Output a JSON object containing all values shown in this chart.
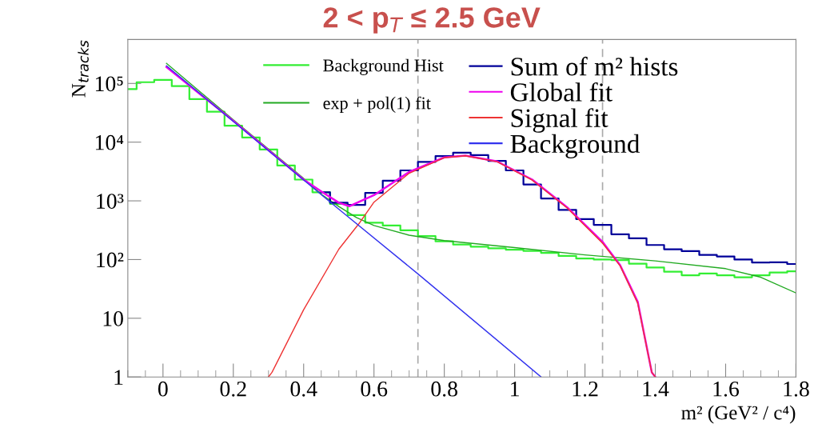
{
  "chart_data": {
    "type": "line",
    "title": "2 < p$_{T}$ ≤ 2.5 GeV",
    "xlabel": "m² (GeV² / c⁴)",
    "ylabel": "N$_{tracks}$",
    "log": "y",
    "xlim": [
      -0.1,
      1.8
    ],
    "xticks": [
      0,
      0.2,
      0.4,
      0.6,
      0.8,
      1,
      1.2,
      1.4,
      1.6,
      1.8
    ],
    "ylim": [
      1,
      560000
    ],
    "yticks": [
      1,
      10,
      {
        "value": 100,
        "label": "10²"
      },
      {
        "value": 1000,
        "label": "10³"
      },
      {
        "value": 10000,
        "label": "10⁴"
      },
      {
        "value": 100000,
        "label": "10⁵"
      }
    ],
    "grid": false,
    "legend": "top right",
    "ref_lines": [
      {
        "axis": "x",
        "value": 0.725,
        "color": "#aaaaaa",
        "line_style": "dashed"
      },
      {
        "axis": "x",
        "value": 1.25,
        "color": "#aaaaaa",
        "line_style": "dashed"
      }
    ],
    "series": [
      {
        "name": "Background Hist",
        "type": "step",
        "color": "#33ee33",
        "x": [
          -0.1,
          -0.05,
          0,
          0.05,
          0.1,
          0.15,
          0.2,
          0.25,
          0.3,
          0.35,
          0.4,
          0.45,
          0.5,
          0.55,
          0.6,
          0.65,
          0.7,
          0.75,
          0.8,
          0.85,
          0.9,
          0.95,
          1,
          1.05,
          1.1,
          1.15,
          1.2,
          1.25,
          1.3,
          1.35,
          1.4,
          1.45,
          1.5,
          1.55,
          1.6,
          1.65,
          1.7,
          1.75,
          1.8
        ],
        "values": [
          80000,
          105000,
          115000,
          90000,
          54000,
          33000,
          19000,
          12000,
          7500,
          4000,
          2300,
          1400,
          890,
          570,
          425,
          380,
          316,
          250,
          204,
          180,
          166,
          155,
          147,
          140,
          130,
          115,
          104,
          100,
          98,
          85,
          73,
          62,
          54,
          58,
          54,
          50,
          54,
          60,
          63
        ]
      },
      {
        "name": "exp + pol(1) fit",
        "color": "#22aa22",
        "x": [
          0.01,
          0.2,
          0.4,
          0.45,
          0.5,
          0.55,
          0.6,
          0.7,
          0.8,
          1,
          1.2,
          1.4,
          1.6,
          1.7,
          1.8
        ],
        "values": [
          220000,
          24000,
          2400,
          1300,
          800,
          520,
          380,
          260,
          210,
          160,
          120,
          95,
          70,
          50,
          27
        ]
      },
      {
        "name": "Sum of m² hists",
        "type": "step",
        "color": "#000099",
        "x": [
          0.45,
          0.5,
          0.55,
          0.6,
          0.65,
          0.7,
          0.75,
          0.8,
          0.85,
          0.9,
          0.95,
          1,
          1.05,
          1.1,
          1.15,
          1.2,
          1.25,
          1.3,
          1.35,
          1.4,
          1.45,
          1.5,
          1.55,
          1.6,
          1.65,
          1.7,
          1.75,
          1.8
        ],
        "values": [
          1400,
          930,
          850,
          1370,
          2200,
          3300,
          4600,
          5800,
          6600,
          6000,
          4800,
          3300,
          1900,
          1100,
          700,
          490,
          390,
          270,
          230,
          177,
          150,
          139,
          120,
          113,
          100,
          89,
          90,
          84
        ]
      },
      {
        "name": "Global fit",
        "color": "#ee00ee",
        "x": [
          0.01,
          0.2,
          0.4,
          0.45,
          0.5,
          0.53,
          0.6,
          0.7,
          0.8,
          0.86,
          0.95,
          1.05,
          1.15,
          1.25,
          1.3,
          1.35,
          1.39,
          1.4
        ],
        "values": [
          190000,
          23000,
          2300,
          1450,
          930,
          810,
          1250,
          3100,
          5500,
          5900,
          4700,
          2300,
          770,
          200,
          80,
          19,
          1.2,
          1
        ]
      },
      {
        "name": "Signal fit",
        "color": "#ee3333",
        "x": [
          0.3,
          0.31,
          0.4,
          0.5,
          0.56,
          0.6,
          0.7,
          0.8,
          0.86,
          0.95,
          1.05,
          1.15,
          1.25,
          1.3,
          1.35,
          1.39,
          1.4
        ],
        "values": [
          1,
          1.2,
          14,
          150,
          430,
          950,
          2950,
          5450,
          5850,
          4650,
          2250,
          750,
          190,
          78,
          18,
          1.2,
          1
        ]
      },
      {
        "name": "Background",
        "color": "#3333ee",
        "x": [
          0.01,
          0.5,
          0.725,
          1.075
        ],
        "values": [
          200000,
          720,
          57,
          1
        ]
      }
    ]
  }
}
